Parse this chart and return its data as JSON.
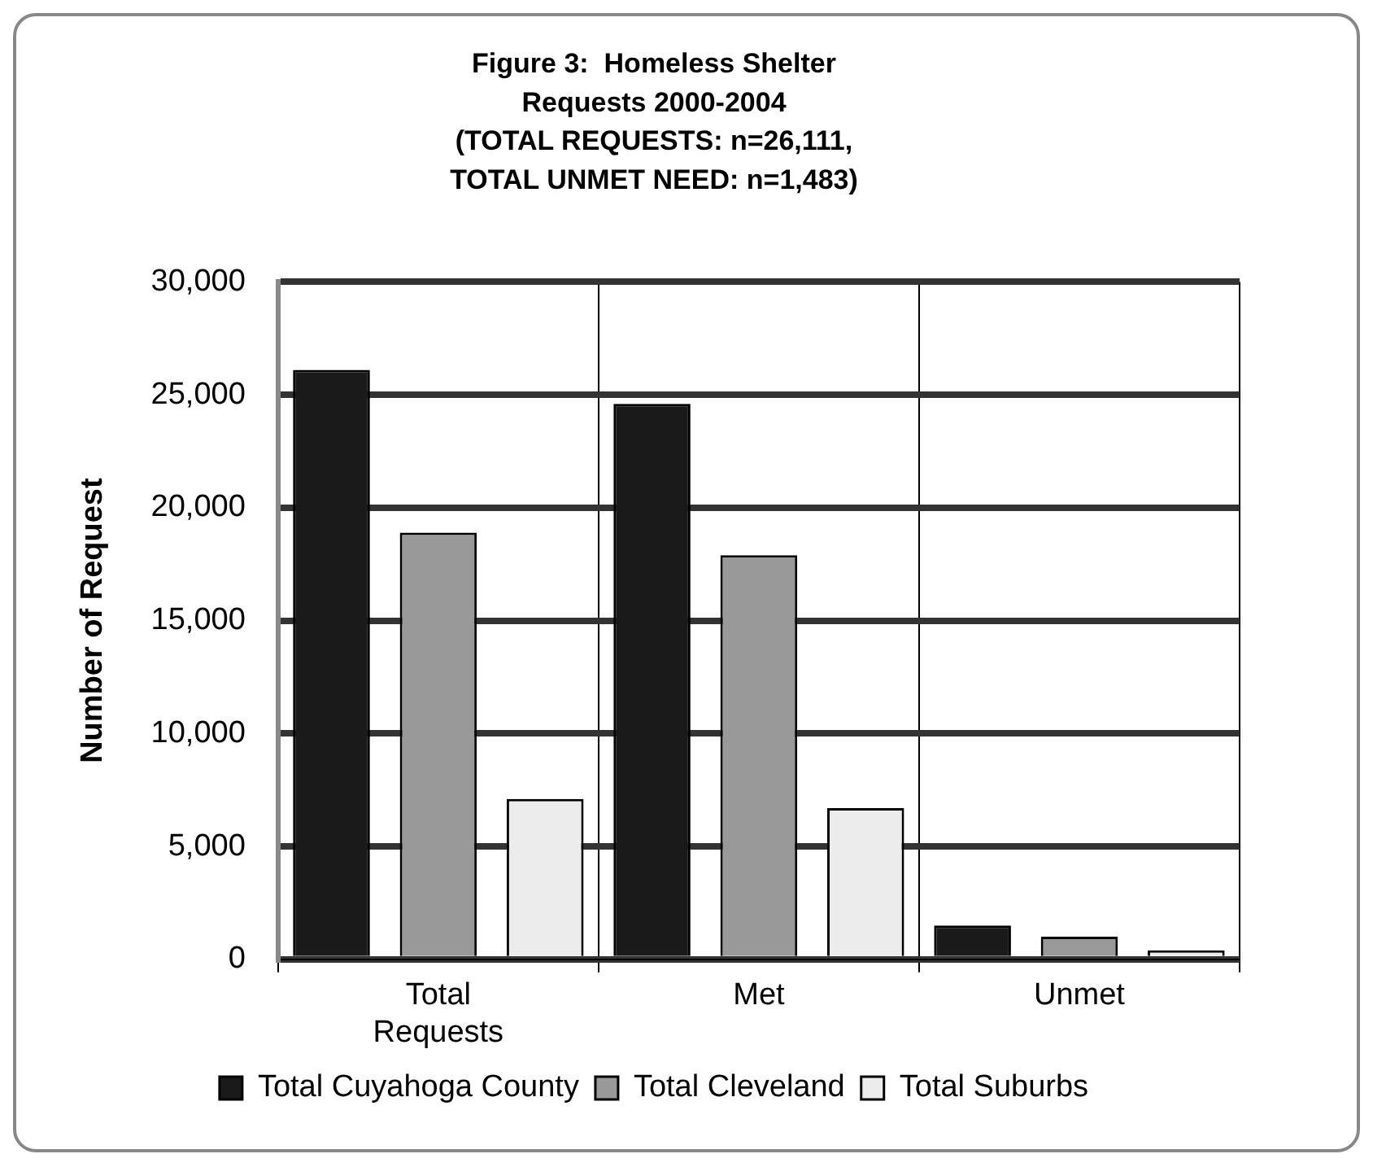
{
  "chart_data": {
    "type": "bar",
    "title": [
      "Figure 3:  Homeless Shelter",
      "Requests 2000-2004",
      "(TOTAL REQUESTS: n=26,111,",
      "TOTAL UNMET NEED: n=1,483)"
    ],
    "ylabel": "Number of Request",
    "categories": [
      "Total Requests",
      "Met",
      "Unmet"
    ],
    "series": [
      {
        "name": "Total Cuyahoga County",
        "color": "#1a1a1a",
        "values": [
          26100,
          24600,
          1500
        ]
      },
      {
        "name": "Total Cleveland",
        "color": "#999999",
        "values": [
          18900,
          17900,
          1000
        ]
      },
      {
        "name": "Total Suburbs",
        "color": "#ececec",
        "values": [
          7100,
          6700,
          400
        ]
      }
    ],
    "ylim": [
      0,
      30000
    ],
    "yticks": [
      {
        "value": 0,
        "label": "0"
      },
      {
        "value": 5000,
        "label": "5,000"
      },
      {
        "value": 10000,
        "label": "10,000"
      },
      {
        "value": 15000,
        "label": "15,000"
      },
      {
        "value": 20000,
        "label": "20,000"
      },
      {
        "value": 25000,
        "label": "25,000"
      },
      {
        "value": 30000,
        "label": "30,000"
      }
    ],
    "grid": true,
    "legend": "bottom"
  }
}
